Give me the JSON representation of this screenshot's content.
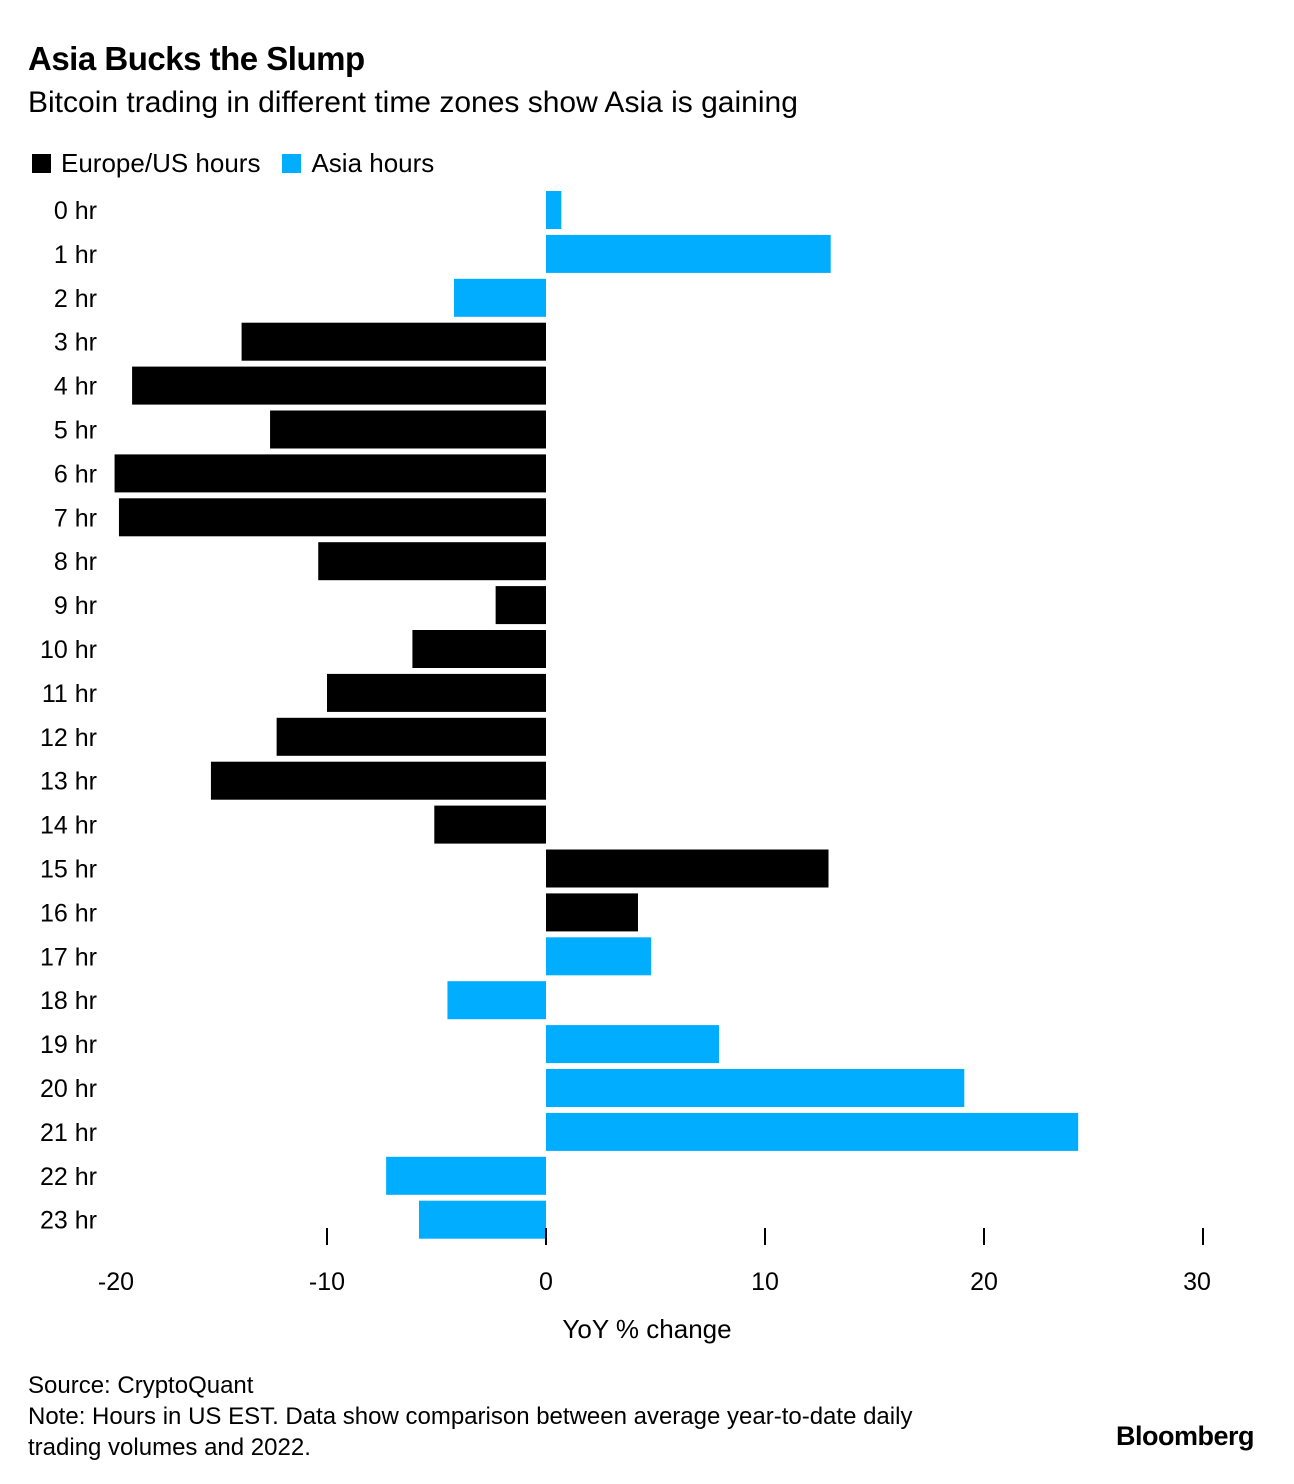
{
  "header": {
    "title": "Asia Bucks the Slump",
    "subtitle": "Bitcoin trading in different time zones show Asia is gaining"
  },
  "legend": [
    {
      "label": "Europe/US hours",
      "color": "#000000"
    },
    {
      "label": "Asia hours",
      "color": "#00adff"
    }
  ],
  "footer": {
    "source": "Source: CryptoQuant",
    "note_line1": "Note: Hours in US EST. Data show comparison between average year-to-date daily",
    "note_line2": "trading volumes and 2022.",
    "brand": "Bloomberg"
  },
  "chart_data": {
    "type": "bar",
    "orientation": "horizontal",
    "title": "Asia Bucks the Slump",
    "subtitle": "Bitcoin trading in different time zones show Asia is gaining",
    "xlabel": "YoY % change",
    "ylabel": "",
    "xlim": [
      -20,
      30
    ],
    "xticks": [
      -20,
      -10,
      0,
      10,
      20,
      30
    ],
    "legend_position": "top-left",
    "categories": [
      "0 hr",
      "1 hr",
      "2 hr",
      "3 hr",
      "4 hr",
      "5 hr",
      "6 hr",
      "7 hr",
      "8 hr",
      "9 hr",
      "10 hr",
      "11 hr",
      "12 hr",
      "13 hr",
      "14 hr",
      "15 hr",
      "16 hr",
      "17 hr",
      "18 hr",
      "19 hr",
      "20 hr",
      "21 hr",
      "22 hr",
      "23 hr"
    ],
    "values": [
      0.7,
      13,
      -4.2,
      -13.9,
      -18.9,
      -12.6,
      -19.7,
      -19.5,
      -10.4,
      -2.3,
      -6.1,
      -10,
      -12.3,
      -15.3,
      -5.1,
      12.9,
      4.2,
      4.8,
      -4.5,
      7.9,
      19.1,
      24.3,
      -7.3,
      -5.8
    ],
    "series_index": [
      1,
      1,
      1,
      0,
      0,
      0,
      0,
      0,
      0,
      0,
      0,
      0,
      0,
      0,
      0,
      0,
      0,
      1,
      1,
      1,
      1,
      1,
      1,
      1
    ],
    "series": [
      {
        "name": "Europe/US hours",
        "color": "#000000"
      },
      {
        "name": "Asia hours",
        "color": "#00adff"
      }
    ]
  }
}
